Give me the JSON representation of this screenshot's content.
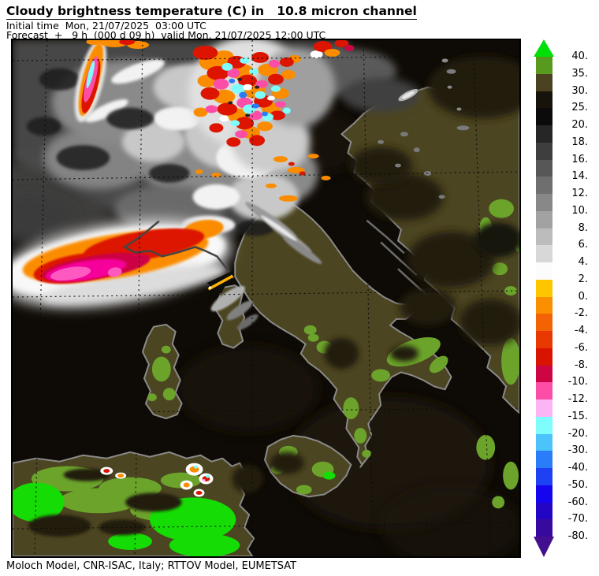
{
  "header": {
    "title": "Cloudy brightness temperature (C) in   10.8 micron channel",
    "initial_time": "Initial time  Mon, 21/07/2025  03:00 UTC",
    "forecast": "Forecast  +   9 h  (000 d 09 h)  valid Mon, 21/07/2025 12:00 UTC"
  },
  "footer": {
    "credit": "Moloch Model, CNR-ISAC, Italy; RTTOV Model, EUMETSAT"
  },
  "legend": {
    "units": "C",
    "boundary_labels": [
      "40.",
      "35.",
      "30.",
      "25.",
      "20.",
      "18.",
      "16.",
      "14.",
      "12.",
      "10.",
      "8.",
      "6.",
      "4.",
      "2.",
      "0.",
      "-2.",
      "-4.",
      "-6.",
      "-8.",
      "-10.",
      "-12.",
      "-15.",
      "-20.",
      "-30.",
      "-40.",
      "-50.",
      "-60.",
      "-70.",
      "-80."
    ],
    "swatch_colors": [
      "#579a1e",
      "#4a4220",
      "#17130a",
      "#0b0b0d",
      "#262626",
      "#3e3e3e",
      "#575757",
      "#6f6f6f",
      "#888888",
      "#a2a2a2",
      "#bcbcbc",
      "#d8d8d8",
      "#fcfcfc",
      "#fec600",
      "#fa8f00",
      "#f36305",
      "#e83a00",
      "#d81400",
      "#ce0545",
      "#fc4ea6",
      "#fdb4f7",
      "#7ffdfd",
      "#4cc3fa",
      "#2a7cf8",
      "#1e42f3",
      "#1405ee",
      "#2205c5",
      "#38099e"
    ],
    "over_range_color": "#00e008",
    "under_range_color": "#42108f"
  },
  "map": {
    "colors": {
      "sea": "#0e0a05",
      "sea-shade": "#1b1610",
      "land": "#4c4521",
      "land-mottle": "#221d10",
      "green": "#6ba32b",
      "bright-green": "#16dc05",
      "coast": "#8a8a8a",
      "coast-dark": "#454545",
      "grid": "#0a0a0a",
      "cloud-base": "#4c4c4c",
      "cloud-mid": "#8a8a8a",
      "cloud-light": "#c8c8c8",
      "cloud-white": "#f2f2f2",
      "cloud-dark": "#1f1f1f",
      "cell-orange": "#fb8c00",
      "cell-red": "#dc1400",
      "cell-crimson": "#ce0545",
      "cell-magenta": "#f5009b",
      "cell-pink": "#fc4ea6",
      "cell-pale-pink": "#fdb4f7",
      "cell-cyan": "#7ffdfd",
      "cell-blue": "#2a7cf8",
      "cell-white": "#ffffff",
      "plume-bright-pink": "#fd59c0",
      "beak-amber": "#ffb300"
    }
  }
}
